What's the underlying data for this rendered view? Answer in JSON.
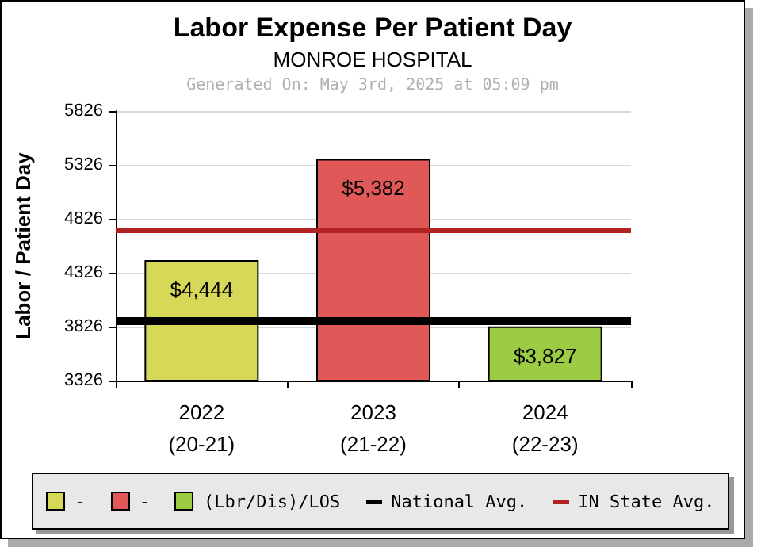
{
  "chart_data": {
    "type": "bar",
    "title": "Labor Expense Per Patient Day",
    "subtitle": "MONROE HOSPITAL",
    "annotations": [
      "Generated On: May 3rd, 2025 at 05:09 pm"
    ],
    "ylabel": "Labor / Patient Day",
    "categories": [
      "2022\n(20-21)",
      "2023\n(21-22)",
      "2024\n(22-23)"
    ],
    "stacked": true,
    "series": [
      {
        "name": "-",
        "color": "#d8d858",
        "values": [
          4444,
          null,
          null
        ],
        "value_labels": [
          "$4,444",
          null,
          null
        ]
      },
      {
        "name": "-",
        "color": "#e05858",
        "values": [
          null,
          5382,
          null
        ],
        "value_labels": [
          null,
          "$5,382",
          null
        ]
      },
      {
        "name": "(Lbr/Dis)/LOS",
        "color": "#9ccc44",
        "values": [
          null,
          null,
          3827
        ],
        "value_labels": [
          null,
          null,
          "$3,827"
        ]
      }
    ],
    "ylim": [
      3326,
      5826
    ],
    "yticks": [
      3326,
      3826,
      4326,
      4826,
      5326,
      5826
    ],
    "grid": "y",
    "legend": "bottom",
    "ref_lines": [
      {
        "axis": "y",
        "value": 3875,
        "label": "National Avg.",
        "color": "#000000"
      },
      {
        "axis": "y",
        "value": 4725,
        "label": "IN State Avg.",
        "color": "#b22222"
      }
    ]
  }
}
